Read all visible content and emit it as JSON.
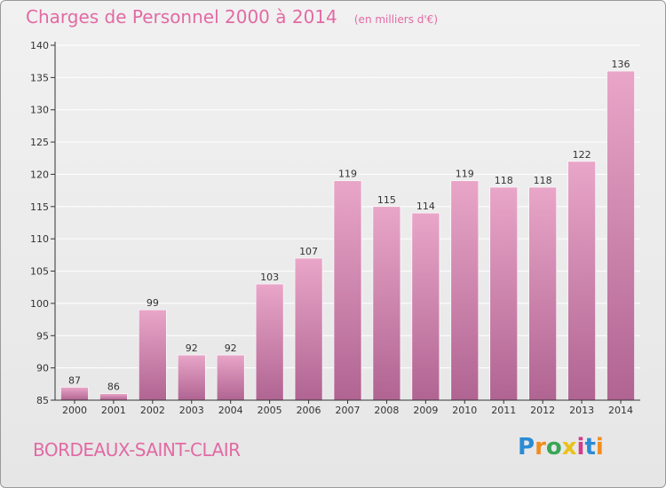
{
  "header": {
    "title": "Charges de Personnel 2000 à 2014",
    "subtitle": "(en milliers d'€)"
  },
  "footer": {
    "place_name": "BORDEAUX-SAINT-CLAIR",
    "logo_text": "Proxiti",
    "logo_colors": [
      "#2a8bd6",
      "#f28c1e",
      "#3aa655",
      "#e8c21a",
      "#d63a8a",
      "#2a8bd6",
      "#f28c1e"
    ]
  },
  "colors": {
    "bar_top": "#e9a6c8",
    "bar_bottom": "#b06492",
    "text_accent": "#e26aa4",
    "grid": "#ffffff",
    "axis": "#333333"
  },
  "chart_data": {
    "type": "bar",
    "title": "Charges de Personnel 2000 à 2014",
    "subtitle": "(en milliers d'€)",
    "xlabel": "",
    "ylabel": "",
    "categories": [
      "2000",
      "2001",
      "2002",
      "2003",
      "2004",
      "2005",
      "2006",
      "2007",
      "2008",
      "2009",
      "2010",
      "2011",
      "2012",
      "2013",
      "2014"
    ],
    "values": [
      87,
      86,
      99,
      92,
      92,
      103,
      107,
      119,
      115,
      114,
      119,
      118,
      118,
      122,
      136
    ],
    "ylim": [
      85,
      140
    ],
    "yticks": [
      85,
      90,
      95,
      100,
      105,
      110,
      115,
      120,
      125,
      130,
      135,
      140
    ],
    "grid": true,
    "data_labels": true
  }
}
